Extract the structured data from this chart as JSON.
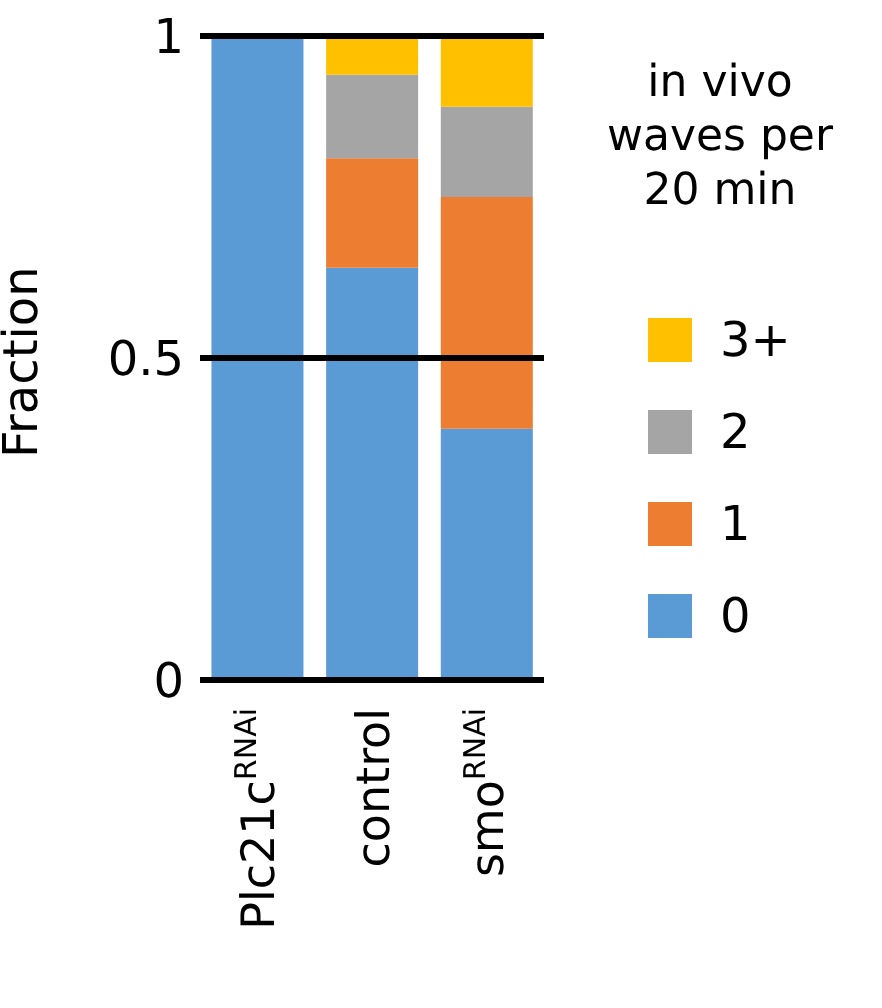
{
  "chart_data": {
    "type": "bar",
    "stacked": true,
    "ylabel": "Fraction",
    "legend_title": "in vivo waves per 20 min",
    "categories": [
      "Plc21c$^{RNAi}$",
      "control",
      "smo$^{RNAi}$"
    ],
    "series": [
      {
        "name": "0",
        "color": "#5b9bd5",
        "values": [
          1,
          0.64,
          0.39
        ]
      },
      {
        "name": "1",
        "color": "#ed7d31",
        "values": [
          0,
          0.17,
          0.36
        ]
      },
      {
        "name": "2",
        "color": "#a5a5a5",
        "values": [
          0,
          0.13,
          0.14
        ]
      },
      {
        "name": "3+",
        "color": "#ffc000",
        "values": [
          0,
          0.06,
          0.11
        ]
      }
    ],
    "ylim": [
      0,
      1
    ],
    "yticks": [
      0,
      0.5,
      1
    ],
    "grid": "y",
    "legend": "right"
  }
}
